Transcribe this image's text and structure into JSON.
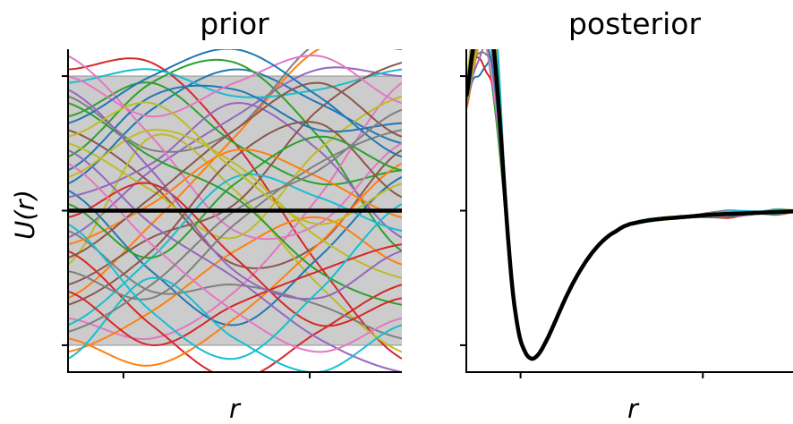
{
  "figure": {
    "ylabel": "U(r)",
    "xlabel": "r"
  },
  "chart_data": [
    {
      "type": "line",
      "panel": "prior",
      "title": "prior",
      "xlabel": "r",
      "ylabel": "U(r)",
      "tick_labels": "none",
      "xlim": [
        0,
        1
      ],
      "ylim": [
        -1.2,
        1.2
      ],
      "yticks": [
        -1,
        0,
        1
      ],
      "xticks": [
        0.166,
        0.724
      ],
      "band": {
        "lower": -1.0,
        "upper": 1.0,
        "color": "#cccccc"
      },
      "mean": {
        "x": [
          0,
          1
        ],
        "y": [
          0,
          0
        ],
        "color": "#000000"
      },
      "palette": [
        "#1f77b4",
        "#ff7f0e",
        "#2ca02c",
        "#d62728",
        "#9467bd",
        "#8c564b",
        "#e377c2",
        "#7f7f7f",
        "#bcbd22",
        "#17becf"
      ],
      "sample_x": [
        0,
        0.25,
        0.5,
        0.75,
        1
      ],
      "samples": [
        [
          0.2,
          0.75,
          1.05,
          0.8,
          0.5
        ],
        [
          -0.65,
          -0.1,
          0.55,
          1.2,
          1.25
        ],
        [
          0.4,
          0.95,
          1.1,
          0.55,
          -0.3
        ],
        [
          1.05,
          1.1,
          0.5,
          -0.4,
          -1.1
        ],
        [
          -0.2,
          0.3,
          0.7,
          1.05,
          1.0
        ],
        [
          0.6,
          0.2,
          -0.4,
          -0.25,
          0.45
        ],
        [
          -0.8,
          -0.95,
          -0.6,
          0.1,
          0.95
        ],
        [
          0.85,
          0.45,
          0.6,
          1.25,
          1.2
        ],
        [
          -0.4,
          0.55,
          0.15,
          -0.55,
          -1.05
        ],
        [
          0.95,
          1.05,
          0.85,
          0.9,
          1.05
        ],
        [
          0.15,
          -0.45,
          -0.85,
          -0.35,
          0.25
        ],
        [
          -1.05,
          -0.75,
          -0.3,
          -0.05,
          -0.4
        ],
        [
          0.7,
          0.95,
          0.5,
          0.2,
          0.3
        ],
        [
          -0.3,
          -0.85,
          -1.25,
          -0.9,
          -0.55
        ],
        [
          0.1,
          0.35,
          0.8,
          0.45,
          -0.2
        ],
        [
          -0.55,
          -0.2,
          0.05,
          0.75,
          1.1
        ],
        [
          1.15,
          0.55,
          -0.15,
          -0.1,
          0.5
        ],
        [
          -0.15,
          -0.6,
          -0.55,
          -0.7,
          -0.95
        ],
        [
          0.5,
          0.15,
          -0.2,
          0.45,
          0.85
        ],
        [
          -0.85,
          -0.35,
          0.25,
          0.1,
          -0.15
        ],
        [
          0.3,
          0.85,
          0.9,
          0.6,
          0.65
        ],
        [
          -0.95,
          -1.15,
          -0.8,
          -0.25,
          0.35
        ],
        [
          0.8,
          0.4,
          0.1,
          -0.45,
          -0.7
        ],
        [
          -0.05,
          0.2,
          -0.35,
          -0.85,
          -0.65
        ],
        [
          0.45,
          -0.1,
          -0.5,
          -0.95,
          -1.2
        ],
        [
          -0.7,
          -0.3,
          0.4,
          0.65,
          0.1
        ],
        [
          1.0,
          0.7,
          0.95,
          1.15,
          0.8
        ],
        [
          -0.45,
          -0.65,
          -0.1,
          0.35,
          0.6
        ],
        [
          0.25,
          0.6,
          0.35,
          -0.2,
          -0.5
        ],
        [
          -1.1,
          -0.5,
          -0.95,
          -1.2,
          -0.85
        ],
        [
          0.65,
          1.0,
          1.2,
          0.85,
          0.4
        ],
        [
          -0.25,
          0.05,
          0.45,
          0.25,
          -0.05
        ],
        [
          0.05,
          -0.35,
          0.2,
          0.55,
          0.3
        ],
        [
          -0.6,
          -1.0,
          -0.7,
          -0.45,
          -0.25
        ],
        [
          0.9,
          0.3,
          -0.45,
          -0.65,
          -0.3
        ],
        [
          -0.35,
          0.1,
          0.6,
          0.95,
          0.55
        ],
        [
          0.35,
          -0.25,
          -0.75,
          -1.05,
          -0.8
        ],
        [
          -0.9,
          -0.55,
          0.0,
          0.3,
          0.75
        ],
        [
          0.55,
          0.8,
          0.3,
          -0.1,
          0.2
        ],
        [
          -0.1,
          -0.75,
          -1.1,
          -0.6,
          0.05
        ]
      ]
    },
    {
      "type": "line",
      "panel": "posterior",
      "title": "posterior",
      "xlabel": "r",
      "tick_labels": "none",
      "xlim": [
        0,
        1
      ],
      "ylim": [
        -1.2,
        1.2
      ],
      "yticks": [
        -1,
        0,
        1
      ],
      "xticks": [
        0.166,
        0.724
      ],
      "mean": {
        "x": [
          0,
          0.02,
          0.04,
          0.06,
          0.08,
          0.1,
          0.12,
          0.14,
          0.16,
          0.18,
          0.2,
          0.22,
          0.24,
          0.26,
          0.28,
          0.3,
          0.32,
          0.34,
          0.36,
          0.38,
          0.4,
          0.42,
          0.44,
          0.46,
          0.48,
          0.5,
          0.55,
          0.6,
          0.65,
          0.7,
          0.75,
          0.8,
          0.85,
          0.9,
          0.95,
          1.0
        ],
        "y": [
          0.85,
          1.2,
          1.45,
          1.5,
          1.3,
          0.75,
          0.05,
          -0.55,
          -0.9,
          -1.05,
          -1.1,
          -1.07,
          -0.99,
          -0.89,
          -0.78,
          -0.67,
          -0.57,
          -0.48,
          -0.4,
          -0.33,
          -0.27,
          -0.22,
          -0.18,
          -0.15,
          -0.12,
          -0.1,
          -0.075,
          -0.06,
          -0.05,
          -0.04,
          -0.03,
          -0.025,
          -0.02,
          -0.015,
          -0.01,
          -0.005
        ],
        "color": "#000000"
      },
      "spread": {
        "x": [
          0,
          0.02,
          0.04,
          0.06,
          0.08,
          0.1,
          0.12,
          0.14,
          0.16,
          0.18,
          0.2,
          0.22,
          0.24,
          0.26,
          0.28,
          0.3,
          0.32,
          0.34,
          0.36,
          0.38,
          0.4,
          0.42,
          0.44,
          0.46,
          0.48,
          0.5,
          0.55,
          0.6,
          0.65,
          0.7,
          0.75,
          0.8,
          0.85,
          0.9,
          0.95,
          1.0
        ],
        "y": [
          0.1,
          0.25,
          0.45,
          0.55,
          0.5,
          0.3,
          0.1,
          0.03,
          0.01,
          0.01,
          0.01,
          0.01,
          0.01,
          0.01,
          0.01,
          0.01,
          0.01,
          0.01,
          0.01,
          0.01,
          0.01,
          0.01,
          0.01,
          0.01,
          0.01,
          0.01,
          0.01,
          0.01,
          0.01,
          0.01,
          0.02,
          0.035,
          0.02,
          0.01,
          0.025,
          0.01
        ]
      },
      "n_samples": 40,
      "palette": [
        "#1f77b4",
        "#ff7f0e",
        "#2ca02c",
        "#d62728",
        "#9467bd",
        "#8c564b",
        "#e377c2",
        "#7f7f7f",
        "#bcbd22",
        "#17becf"
      ]
    }
  ]
}
